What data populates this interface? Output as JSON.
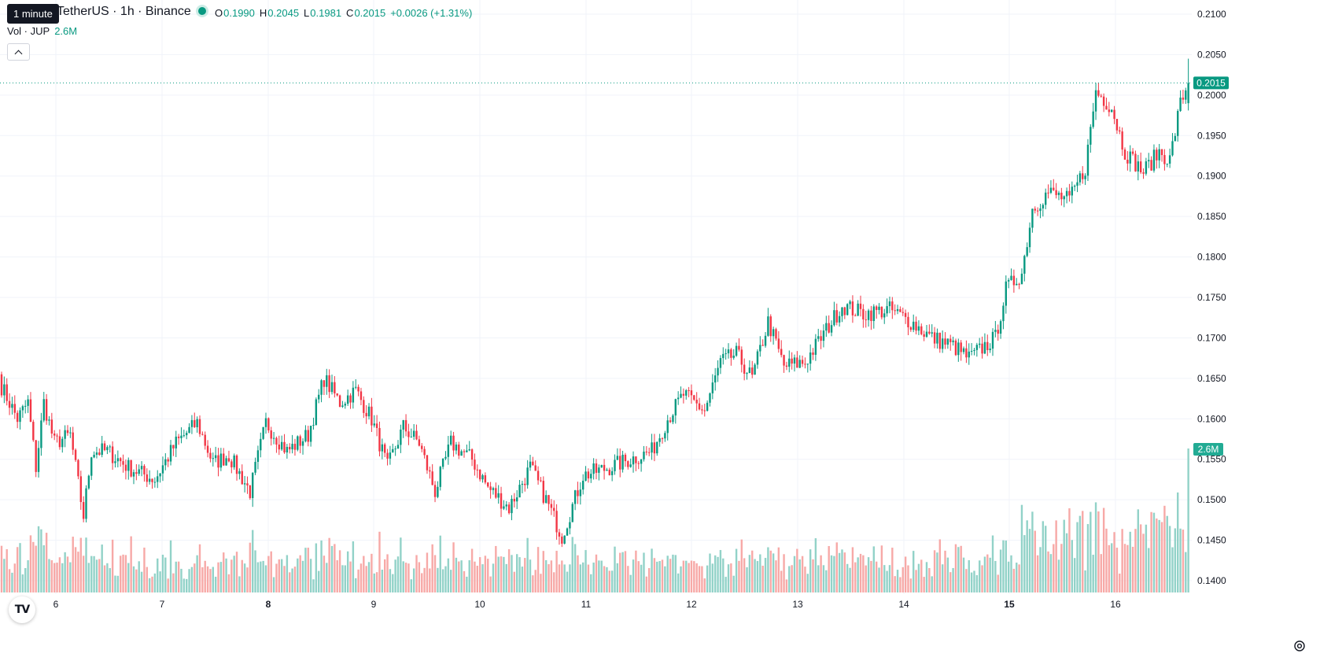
{
  "header": {
    "tooltip": "1 minute",
    "symbol_text": "TetherUS · 1h · Binance",
    "ohlc": [
      {
        "key": "O",
        "value": "0.1990"
      },
      {
        "key": "H",
        "value": "0.2045"
      },
      {
        "key": "L",
        "value": "0.1981"
      },
      {
        "key": "C",
        "value": "0.2015"
      }
    ],
    "change": "+0.0026 (+1.31%)",
    "vol_label": "Vol · JUP",
    "vol_value": "2.6M"
  },
  "price_axis": {
    "ticks": [
      "0.2100",
      "0.2050",
      "0.2000",
      "0.1950",
      "0.1900",
      "0.1850",
      "0.1800",
      "0.1750",
      "0.1700",
      "0.1650",
      "0.1600",
      "0.1550",
      "0.1500",
      "0.1450",
      "0.1400"
    ],
    "last_price_label": "0.2015",
    "last_volume_label": "2.6M"
  },
  "time_axis": {
    "labels": [
      "6",
      "7",
      "8",
      "9",
      "10",
      "11",
      "12",
      "13",
      "14",
      "15",
      "16"
    ],
    "bold_labels": [
      "8",
      "15"
    ]
  },
  "colors": {
    "up": "#089981",
    "down": "#f23645",
    "vol_up": "#92d2c8",
    "vol_down": "#f7a9a7",
    "grid": "#f0f3fa"
  },
  "icons": {
    "logo": "tradingview-logo-icon",
    "settings": "gear-icon"
  },
  "chart_data": {
    "type": "candlestick",
    "interval": "1h",
    "y_range": [
      0.1385,
      0.2115
    ],
    "last_close": 0.2015,
    "anchors": [
      [
        0,
        0.164
      ],
      [
        6,
        0.16
      ],
      [
        10,
        0.162
      ],
      [
        13,
        0.154
      ],
      [
        16,
        0.162
      ],
      [
        20,
        0.157
      ],
      [
        26,
        0.158
      ],
      [
        31,
        0.148
      ],
      [
        34,
        0.156
      ],
      [
        40,
        0.156
      ],
      [
        48,
        0.154
      ],
      [
        58,
        0.1525
      ],
      [
        66,
        0.157
      ],
      [
        74,
        0.1595
      ],
      [
        80,
        0.1545
      ],
      [
        86,
        0.1555
      ],
      [
        94,
        0.151
      ],
      [
        100,
        0.1595
      ],
      [
        108,
        0.156
      ],
      [
        116,
        0.158
      ],
      [
        122,
        0.165
      ],
      [
        128,
        0.162
      ],
      [
        134,
        0.1635
      ],
      [
        140,
        0.16
      ],
      [
        146,
        0.154
      ],
      [
        152,
        0.159
      ],
      [
        158,
        0.157
      ],
      [
        164,
        0.151
      ],
      [
        170,
        0.157
      ],
      [
        178,
        0.155
      ],
      [
        184,
        0.1515
      ],
      [
        192,
        0.149
      ],
      [
        200,
        0.154
      ],
      [
        206,
        0.15
      ],
      [
        212,
        0.1455
      ],
      [
        220,
        0.153
      ],
      [
        230,
        0.154
      ],
      [
        238,
        0.155
      ],
      [
        246,
        0.156
      ],
      [
        252,
        0.16
      ],
      [
        258,
        0.163
      ],
      [
        266,
        0.161
      ],
      [
        272,
        0.167
      ],
      [
        278,
        0.168
      ],
      [
        284,
        0.165
      ],
      [
        290,
        0.172
      ],
      [
        296,
        0.1665
      ],
      [
        304,
        0.167
      ],
      [
        312,
        0.171
      ],
      [
        318,
        0.174
      ],
      [
        326,
        0.173
      ],
      [
        336,
        0.1735
      ],
      [
        344,
        0.172
      ],
      [
        352,
        0.17
      ],
      [
        360,
        0.169
      ],
      [
        366,
        0.1675
      ],
      [
        372,
        0.169
      ],
      [
        376,
        0.17
      ],
      [
        380,
        0.176
      ],
      [
        386,
        0.178
      ],
      [
        390,
        0.186
      ],
      [
        396,
        0.188
      ],
      [
        404,
        0.187
      ],
      [
        410,
        0.191
      ],
      [
        414,
        0.2005
      ],
      [
        420,
        0.1985
      ],
      [
        425,
        0.193
      ],
      [
        432,
        0.1905
      ],
      [
        438,
        0.193
      ],
      [
        442,
        0.192
      ],
      [
        446,
        0.199
      ],
      [
        449,
        0.2015
      ]
    ],
    "volume_scale_max": "2.6M"
  }
}
